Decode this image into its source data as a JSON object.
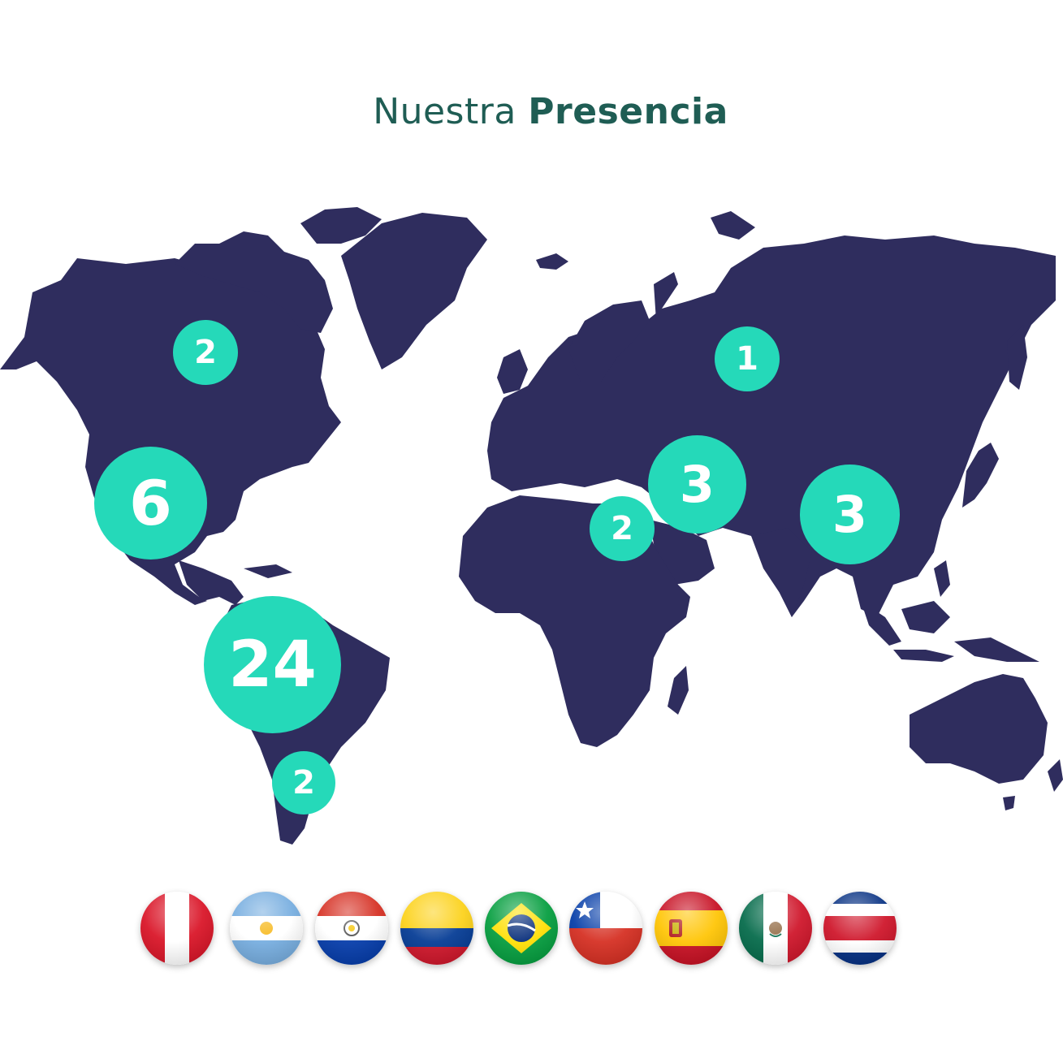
{
  "title": {
    "light": "Nuestra",
    "bold": "Presencia"
  },
  "colors": {
    "land": "#2f2d5e",
    "marker": "#25d9b9",
    "title": "#1f5d54"
  },
  "markers": [
    {
      "id": "canada",
      "label": "2"
    },
    {
      "id": "usa",
      "label": "6"
    },
    {
      "id": "south-america",
      "label": "24"
    },
    {
      "id": "southern-cone",
      "label": "2"
    },
    {
      "id": "russia",
      "label": "1"
    },
    {
      "id": "europe",
      "label": "3"
    },
    {
      "id": "middle-east",
      "label": "2"
    },
    {
      "id": "asia",
      "label": "3"
    }
  ],
  "flags": [
    {
      "country": "peru",
      "icon": "flag-peru-icon"
    },
    {
      "country": "argentina",
      "icon": "flag-argentina-icon"
    },
    {
      "country": "paraguay",
      "icon": "flag-paraguay-icon"
    },
    {
      "country": "colombia",
      "icon": "flag-colombia-icon"
    },
    {
      "country": "brazil",
      "icon": "flag-brazil-icon"
    },
    {
      "country": "chile",
      "icon": "flag-chile-icon"
    },
    {
      "country": "spain",
      "icon": "flag-spain-icon"
    },
    {
      "country": "mexico",
      "icon": "flag-mexico-icon"
    },
    {
      "country": "costa-rica",
      "icon": "flag-costa-rica-icon"
    }
  ]
}
